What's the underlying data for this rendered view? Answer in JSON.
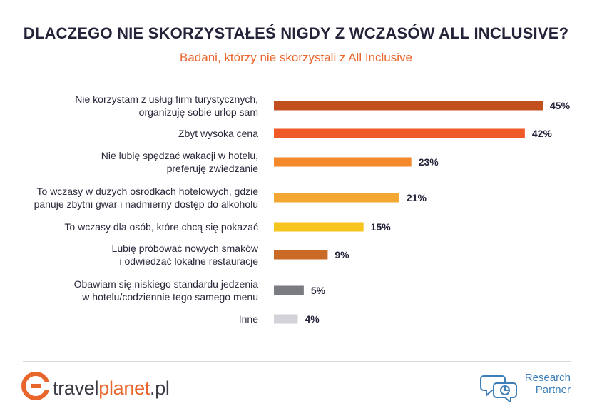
{
  "chart_data": {
    "type": "bar",
    "orientation": "horizontal",
    "title": "DLACZEGO NIE SKORZYSTAŁEŚ NIGDY Z WCZASÓW ALL INCLUSIVE?",
    "subtitle": "Badani, którzy nie skorzystali z All Inclusive",
    "categories": [
      [
        "Nie korzystam z usług firm turystycznych,",
        "organizuję sobie urlop sam"
      ],
      [
        "Zbyt wysoka cena"
      ],
      [
        "Nie lubię spędzać wakacji w hotelu,",
        "preferuję zwiedzanie"
      ],
      [
        "To wczasy w dużych ośrodkach hotelowych, gdzie",
        "panuje zbytni gwar i nadmierny dostęp do alkoholu"
      ],
      [
        "To wczasy dla osób, które chcą się pokazać"
      ],
      [
        "Lubię próbować nowych smaków",
        "i odwiedzać lokalne restauracje"
      ],
      [
        "Obawiam się niskiego standardu jedzenia",
        "w hotelu/codziennie tego samego menu"
      ],
      [
        "Inne"
      ]
    ],
    "values": [
      45,
      42,
      23,
      21,
      15,
      9,
      5,
      4
    ],
    "value_labels": [
      "45%",
      "42%",
      "23%",
      "21%",
      "15%",
      "9%",
      "5%",
      "4%"
    ],
    "unit": "%",
    "bar_colors": [
      "#c2501f",
      "#f05a26",
      "#f3892b",
      "#f2a833",
      "#f6c51e",
      "#c96a26",
      "#7b7b82",
      "#d2d2d8"
    ],
    "xlim": [
      0,
      45
    ],
    "grid": false,
    "legend": "none"
  },
  "branding": {
    "left_logo": {
      "prefix": "travel",
      "accent": "planet",
      "suffix": ".pl",
      "accent_color": "#e8662c"
    },
    "right_logo": {
      "line1": "Research",
      "line2": "Partner",
      "color": "#3d7fb8"
    }
  }
}
